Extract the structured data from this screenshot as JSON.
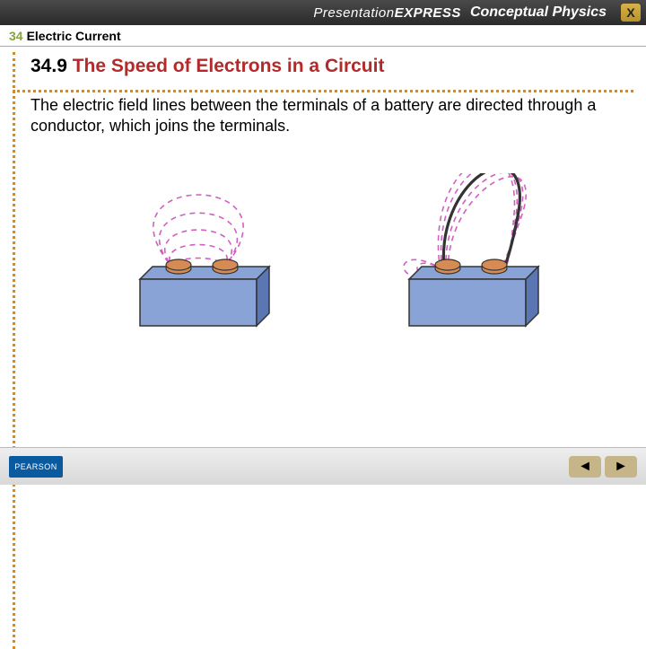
{
  "topbar": {
    "brand_pres": "Presentation",
    "brand_express": "EXPRESS",
    "cp": "Conceptual Physics",
    "close_glyph": "X"
  },
  "chapter": {
    "num": "34",
    "title": "Electric Current"
  },
  "section": {
    "num": "34.9",
    "title": "The Speed of Electrons in a Circuit",
    "title_color": "#b42a2a"
  },
  "body": "The electric field lines between the terminals of a battery are directed through a conductor, which joins the terminals.",
  "footer": {
    "logo": "PEARSON"
  },
  "nav": {
    "prev_glyph": "◄",
    "next_glyph": "►"
  },
  "colors": {
    "dotted": "#d48b2f",
    "accent_green": "#84a23d",
    "battery_body": "#8aa3d6",
    "battery_shadow": "#5a77b3",
    "terminal": "#d68a54",
    "field_line": "#d060c0",
    "outline": "#333333"
  },
  "figure": {
    "type": "infographic",
    "panels": 2,
    "battery_w": 130,
    "battery_h": 52,
    "battery_depth": 14,
    "field_dash": "6,5",
    "field_stroke_width": 1.6,
    "wire_present_right": true,
    "wire_stroke_width": 3.2,
    "terminals": [
      {
        "cx_rel": 0.3,
        "label": ""
      },
      {
        "cx_rel": 0.7,
        "label": ""
      }
    ]
  }
}
